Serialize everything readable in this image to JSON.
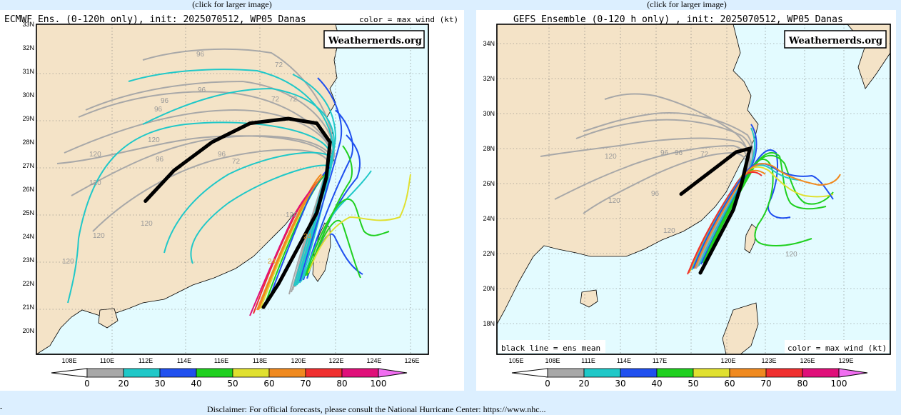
{
  "captions": {
    "left": "(click for larger image)",
    "right": "(click for larger image)"
  },
  "disclaimer": "Disclaimer: For official forecasts, please consult the National Hurricane Center: https://www.nhc...",
  "left_edge": "-",
  "colors": {
    "land": "#f4e3c7",
    "sea": "#e3fbff",
    "gray": "#a8a8a8",
    "cyan": "#20c8c8",
    "blue": "#2050ef",
    "green": "#20d020",
    "yellow": "#e0e030",
    "orange": "#f08a20",
    "red": "#f03030",
    "magenta": "#e0107a",
    "pink": "#f06ef0",
    "mean": "#000000"
  },
  "legend": {
    "ticks": [
      "0",
      "20",
      "30",
      "40",
      "50",
      "60",
      "70",
      "80",
      "100"
    ],
    "colors": [
      "#a8a8a8",
      "#20c8c8",
      "#2050ef",
      "#20d020",
      "#e0e030",
      "#f08a20",
      "#f03030",
      "#e0107a"
    ]
  },
  "left_map": {
    "title": "ECMWF Ens. (0-120h only), init: 2025070512, WP05 Danas",
    "color_note": "color = max wind (kt)",
    "brand": "Weathernerds.org",
    "lat_labels": [
      "33N",
      "32N",
      "31N",
      "30N",
      "29N",
      "28N",
      "27N",
      "26N",
      "25N",
      "24N",
      "23N",
      "22N",
      "21N",
      "20N"
    ],
    "lon_labels": [
      "108E",
      "110E",
      "112E",
      "114E",
      "116E",
      "118E",
      "120E",
      "122E",
      "124E",
      "126E"
    ],
    "hour_labels": [
      "96",
      "72",
      "96",
      "96",
      "96",
      "72",
      "72",
      "72",
      "120",
      "120",
      "96",
      "96",
      "120",
      "120",
      "120",
      "120",
      "24",
      "24",
      "120"
    ],
    "mean_track": [
      [
        112.0,
        25.5
      ],
      [
        113.5,
        26.8
      ],
      [
        115.5,
        28.0
      ],
      [
        117.5,
        28.8
      ],
      [
        119.5,
        29.0
      ],
      [
        121.0,
        28.8
      ],
      [
        121.7,
        28.0
      ],
      [
        121.5,
        26.5
      ],
      [
        121.0,
        25.0
      ],
      [
        120.0,
        23.5
      ],
      [
        119.0,
        22.0
      ],
      [
        118.2,
        21.0
      ]
    ]
  },
  "right_map": {
    "title": "GEFS Ensemble (0-120 h only) , init: 2025070512, WP05 Danas",
    "brand": "Weathernerds.org",
    "bottom_left": "black line = ens mean",
    "bottom_right": "color = max wind (kt)",
    "lat_labels": [
      "34N",
      "32N",
      "30N",
      "28N",
      "26N",
      "24N",
      "22N",
      "20N",
      "18N"
    ],
    "lon_labels": [
      "105E",
      "108E",
      "111E",
      "114E",
      "117E",
      "120E",
      "123E",
      "126E",
      "129E"
    ],
    "hour_labels": [
      "120",
      "96",
      "96",
      "72",
      "120",
      "96",
      "120",
      "120"
    ],
    "mean_track": [
      [
        117.0,
        25.4
      ],
      [
        118.5,
        26.3
      ],
      [
        120.0,
        27.2
      ],
      [
        121.0,
        27.8
      ],
      [
        122.0,
        28.0
      ],
      [
        121.4,
        26.0
      ],
      [
        120.8,
        24.5
      ],
      [
        119.8,
        23.0
      ],
      [
        119.0,
        21.8
      ],
      [
        118.4,
        20.9
      ]
    ]
  }
}
